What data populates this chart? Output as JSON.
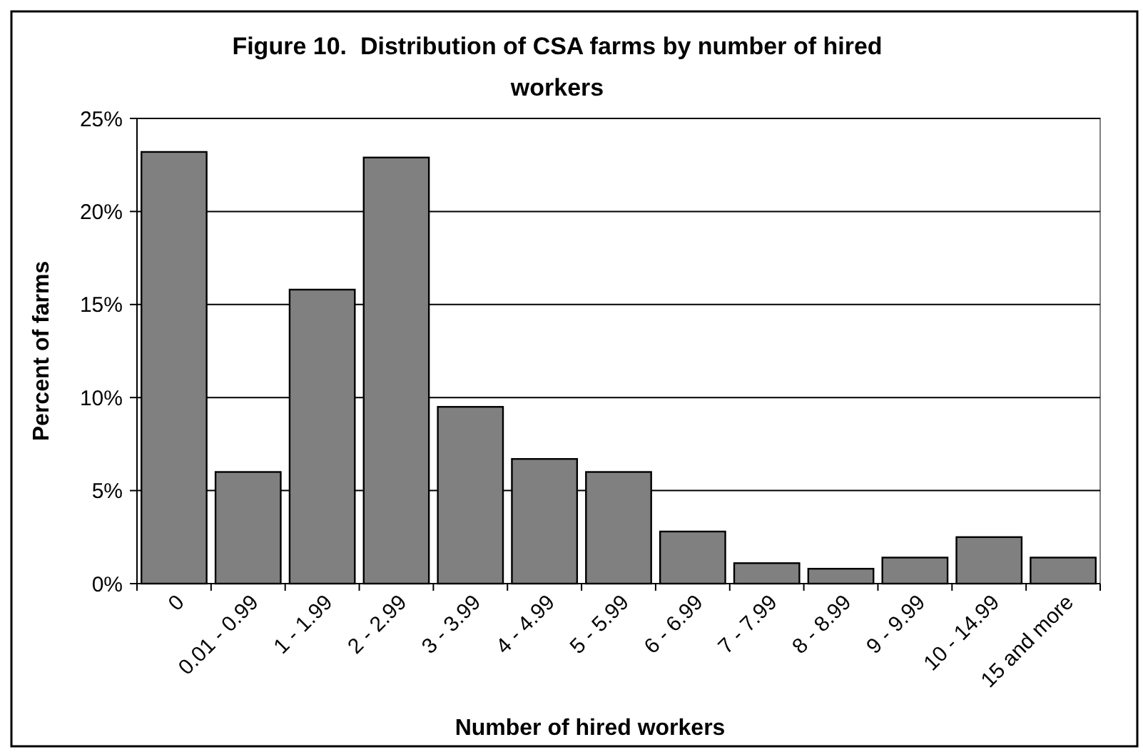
{
  "chart_data": {
    "type": "bar",
    "title": "Figure 10.  Distribution of CSA farms by number of hired workers",
    "xlabel": "Number of hired workers",
    "ylabel": "Percent of farms",
    "categories": [
      "0",
      "0.01 - 0.99",
      "1 - 1.99",
      "2 - 2.99",
      "3 - 3.99",
      "4 - 4.99",
      "5 - 5.99",
      "6 - 6.99",
      "7 - 7.99",
      "8 - 8.99",
      "9 - 9.99",
      "10 - 14.99",
      "15 and more"
    ],
    "values": [
      23.2,
      6.0,
      15.8,
      22.9,
      9.5,
      6.7,
      6.0,
      2.8,
      1.1,
      0.8,
      1.4,
      2.5,
      1.4
    ],
    "color": "#808080",
    "ylim": [
      0,
      25
    ],
    "yticks": [
      {
        "value": 0,
        "label": "0%"
      },
      {
        "value": 5,
        "label": "5%"
      },
      {
        "value": 10,
        "label": "10%"
      },
      {
        "value": 15,
        "label": "15%"
      },
      {
        "value": 20,
        "label": "20%"
      },
      {
        "value": 25,
        "label": "25%"
      }
    ],
    "grid": "y"
  }
}
